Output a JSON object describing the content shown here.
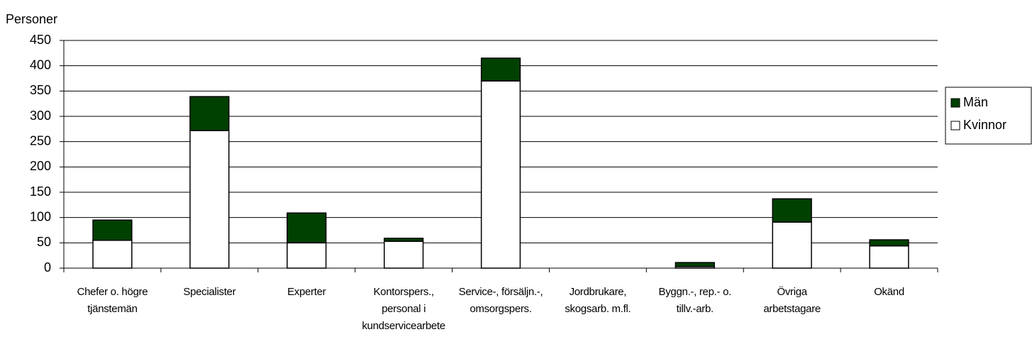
{
  "chart_data": {
    "type": "stacked_bar",
    "y_label": "Personer",
    "categories": [
      "Chefer o. högre\ntjänstemän",
      "Specialister",
      "Experter",
      "Kontorspers.,\npersonal i\nkundservicearbete",
      "Service-, försäljn.-,\nomsorgspers.",
      "Jordbrukare,\nskogsarb. m.fl.",
      "Byggn.-, rep.- o.\ntillv.-arb.",
      "Övriga\narbetstagare",
      "Okänd"
    ],
    "series": [
      {
        "name": "Kvinnor",
        "color": "#ffffff",
        "values": [
          55,
          272,
          50,
          53,
          370,
          0,
          3,
          91,
          44
        ]
      },
      {
        "name": "Män",
        "color": "#004000",
        "values": [
          40,
          67,
          59,
          6,
          45,
          0,
          8,
          46,
          12
        ]
      }
    ],
    "ylim": [
      0,
      450
    ],
    "yticks": [
      0,
      50,
      100,
      150,
      200,
      250,
      300,
      350,
      400,
      450
    ],
    "grid": true,
    "legend": "right"
  }
}
